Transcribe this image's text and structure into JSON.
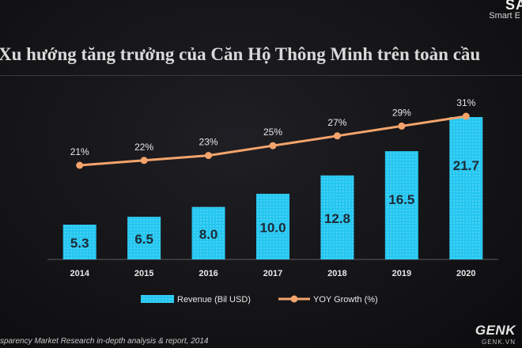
{
  "brand": {
    "name": "SA",
    "tagline": "Smart E"
  },
  "title": "Xu hướng tăng trưởng của Căn Hộ Thông Minh trên toàn cầu",
  "source": "sparency Market Research in-depth analysis & report, 2014",
  "watermark": {
    "logo": "GENK",
    "site": "GENK.VN"
  },
  "colors": {
    "bar": "#25c6f0",
    "line": "#f4a46b",
    "text": "#e8e8e8",
    "axis": "#5a5a60"
  },
  "chart_data": {
    "type": "bar",
    "title": "",
    "categories": [
      "2014",
      "2015",
      "2016",
      "2017",
      "2018",
      "2019",
      "2020"
    ],
    "series": [
      {
        "name": "Revenue (Bil USD)",
        "type": "bar",
        "values": [
          5.3,
          6.5,
          8.0,
          10.0,
          12.8,
          16.5,
          21.7
        ],
        "labels": [
          "5.3",
          "6.5",
          "8.0",
          "10.0",
          "12.8",
          "16.5",
          "21.7"
        ]
      },
      {
        "name": "YOY Growth (%)",
        "type": "line",
        "values": [
          21,
          22,
          23,
          25,
          27,
          29,
          31
        ],
        "labels": [
          "21%",
          "22%",
          "23%",
          "25%",
          "27%",
          "29%",
          "31%"
        ]
      }
    ],
    "legend_position": "bottom",
    "grid": false
  }
}
